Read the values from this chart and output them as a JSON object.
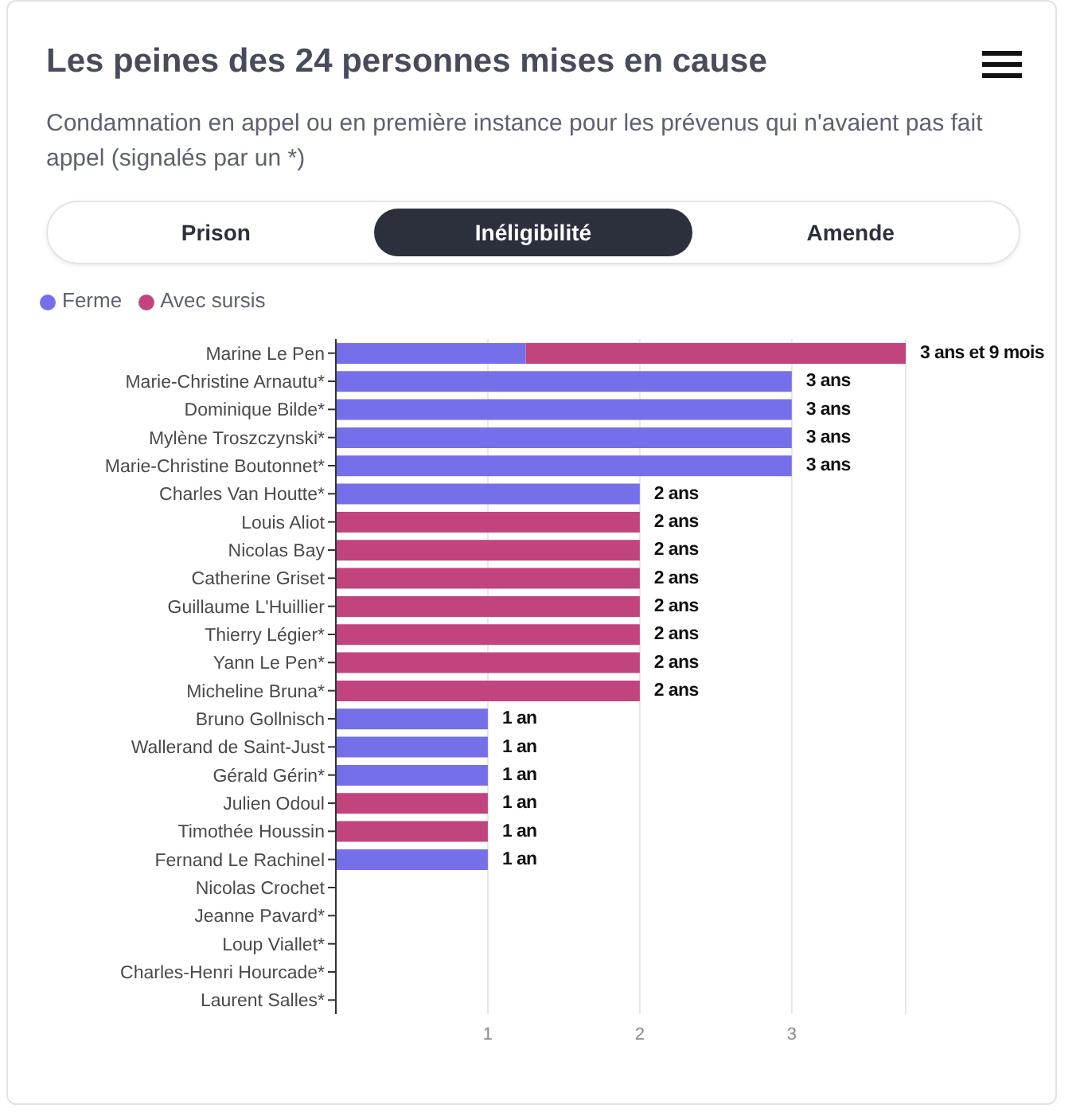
{
  "chart_data": {
    "type": "bar",
    "orientation": "horizontal",
    "stacked": true,
    "title": "Les peines des 24 personnes mises en cause",
    "subtitle": "Condamnation en appel ou en première instance pour les prévenus qui n'avaient pas fait appel (signalés par un *)",
    "annotations": [
      "Prison",
      "Inéligibilité",
      "Amende"
    ],
    "categories": [
      "Marine Le Pen",
      "Marie-Christine Arnautu*",
      "Dominique Bilde*",
      "Mylène Troszczynski*",
      "Marie-Christine Boutonnet*",
      "Charles Van Houtte*",
      "Louis Aliot",
      "Nicolas Bay",
      "Catherine Griset",
      "Guillaume L'Huillier",
      "Thierry Légier*",
      "Yann Le Pen*",
      "Micheline Bruna*",
      "Bruno Gollnisch",
      "Wallerand de Saint-Just",
      "Gérald Gérin*",
      "Julien Odoul",
      "Timothée Houssin",
      "Fernand Le Rachinel",
      "Nicolas Crochet",
      "Jeanne Pavard*",
      "Loup Viallet*",
      "Charles-Henri Hourcade*",
      "Laurent Salles*"
    ],
    "series": [
      {
        "name": "Ferme",
        "color": "#7570ea",
        "values": [
          1.25,
          3,
          3,
          3,
          3,
          2,
          null,
          null,
          null,
          null,
          null,
          null,
          null,
          1,
          1,
          1,
          null,
          null,
          1,
          null,
          null,
          null,
          null,
          null
        ]
      },
      {
        "name": "Avec sursis",
        "color": "#c2447f",
        "values": [
          2.5,
          null,
          null,
          null,
          null,
          null,
          2,
          2,
          2,
          2,
          2,
          2,
          2,
          null,
          null,
          null,
          1,
          1,
          null,
          null,
          null,
          null,
          null,
          null
        ]
      }
    ],
    "totals": [
      "3 ans et 9 mois",
      "3 ans",
      "3 ans",
      "3 ans",
      "3 ans",
      "2 ans",
      "2 ans",
      "2 ans",
      "2 ans",
      "2 ans",
      "2 ans",
      "2 ans",
      "2 ans",
      "1 an",
      "1 an",
      "1 an",
      "1 an",
      "1 an",
      "1 an",
      null,
      null,
      null,
      null,
      null
    ],
    "xlim": [
      0,
      3.75
    ],
    "xticks": [
      1,
      2,
      3
    ],
    "grid": "x",
    "legend": "top left"
  }
}
